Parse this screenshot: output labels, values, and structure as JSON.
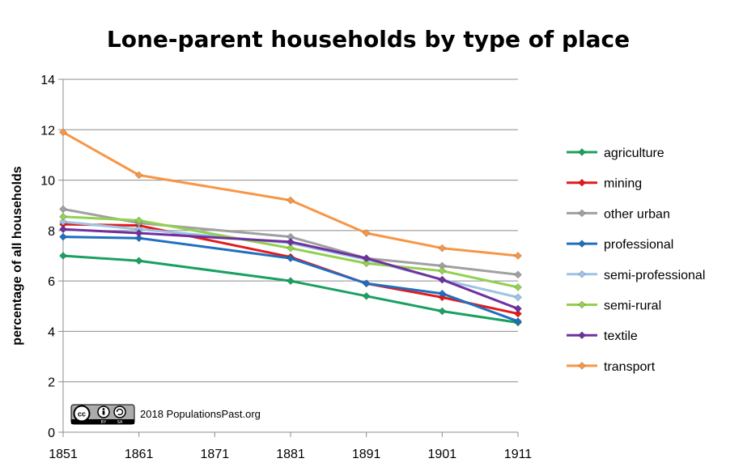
{
  "chart_data": {
    "type": "line",
    "title": "Lone-parent households by type of place",
    "xlabel": "",
    "ylabel": "percentage of all households",
    "xlim": [
      1851,
      1911
    ],
    "ylim": [
      0,
      14
    ],
    "x_ticks": [
      "1851",
      "1861",
      "1871",
      "1881",
      "1891",
      "1901",
      "1911"
    ],
    "y_ticks": [
      "0",
      "2",
      "4",
      "6",
      "8",
      "10",
      "12",
      "14"
    ],
    "grid": "horizontal",
    "legend_position": "right",
    "x": [
      1851,
      1861,
      1881,
      1891,
      1901,
      1911
    ],
    "series": [
      {
        "name": "agriculture",
        "color": "#1aa060",
        "values": [
          7.0,
          6.8,
          6.0,
          5.4,
          4.8,
          4.35
        ]
      },
      {
        "name": "mining",
        "color": "#e31a1c",
        "values": [
          8.25,
          8.2,
          6.95,
          5.9,
          5.35,
          4.7
        ]
      },
      {
        "name": "other urban",
        "color": "#a0a0a0",
        "values": [
          8.85,
          8.3,
          7.75,
          6.9,
          6.6,
          6.25
        ]
      },
      {
        "name": "professional",
        "color": "#1f6fbf",
        "values": [
          7.75,
          7.7,
          6.9,
          5.9,
          5.5,
          4.4
        ]
      },
      {
        "name": "semi-professional",
        "color": "#9dc3e6",
        "values": [
          8.35,
          8.05,
          7.5,
          6.85,
          6.05,
          5.35
        ]
      },
      {
        "name": "semi-rural",
        "color": "#92d050",
        "values": [
          8.55,
          8.4,
          7.3,
          6.7,
          6.4,
          5.75
        ]
      },
      {
        "name": "textile",
        "color": "#7030a0",
        "values": [
          8.05,
          7.9,
          7.55,
          6.9,
          6.05,
          4.9
        ]
      },
      {
        "name": "transport",
        "color": "#f79646",
        "values": [
          11.9,
          10.2,
          9.2,
          7.9,
          7.3,
          7.0
        ]
      }
    ],
    "credit": "2018 PopulationsPast.org",
    "license_badge": {
      "cc": "cc",
      "by": "BY",
      "sa": "SA"
    }
  }
}
